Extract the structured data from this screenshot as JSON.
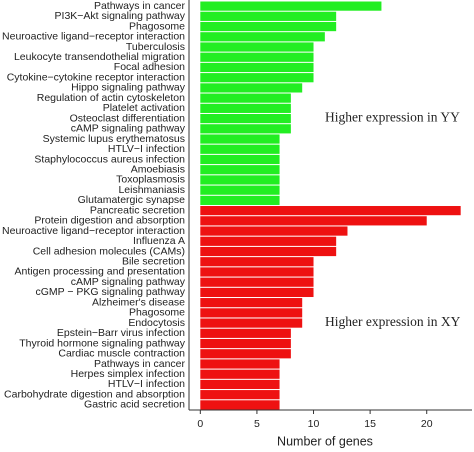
{
  "chart_data": {
    "type": "bar",
    "orientation": "horizontal",
    "xlabel": "Number of genes",
    "xlim": [
      -1,
      24
    ],
    "xticks": [
      0,
      5,
      10,
      15,
      20
    ],
    "series": [
      {
        "name": "Higher expression in YY",
        "color": "#22ee22",
        "categories": [
          "Pathways in cancer",
          "PI3K−Akt signaling pathway",
          "Phagosome",
          "Neuroactive ligand−receptor interaction",
          "Tuberculosis",
          "Leukocyte transendothelial migration",
          "Focal adhesion",
          "Cytokine−cytokine receptor interaction",
          "Hippo signaling pathway",
          "Regulation of actin cytoskeleton",
          "Platelet activation",
          "Osteoclast differentiation",
          "cAMP signaling pathway",
          "Systemic lupus erythematosus",
          "HTLV−I infection",
          "Staphylococcus aureus infection",
          "Amoebiasis",
          "Toxoplasmosis",
          "Leishmaniasis",
          "Glutamatergic synapse"
        ],
        "values": [
          16,
          12,
          12,
          11,
          10,
          10,
          10,
          10,
          9,
          8,
          8,
          8,
          8,
          7,
          7,
          7,
          7,
          7,
          7,
          7
        ]
      },
      {
        "name": "Higher expression in XY",
        "color": "#ee1111",
        "categories": [
          "Pancreatic secretion",
          "Protein digestion and absorption",
          "Neuroactive ligand−receptor interaction",
          "Influenza A",
          "Cell adhesion molecules (CAMs)",
          "Bile secretion",
          "Antigen processing and presentation",
          "cAMP signaling pathway",
          "cGMP − PKG signaling pathway",
          "Alzheimer's disease",
          "Phagosome",
          "Endocytosis",
          "Epstein−Barr virus infection",
          "Thyroid hormone signaling pathway",
          "Cardiac muscle contraction",
          "Pathways in cancer",
          "Herpes simplex infection",
          "HTLV−I infection",
          "Carbohydrate digestion and absorption",
          "Gastric acid secretion"
        ],
        "values": [
          23,
          20,
          13,
          12,
          12,
          10,
          10,
          10,
          10,
          9,
          9,
          9,
          8,
          8,
          8,
          7,
          7,
          7,
          7,
          7
        ]
      }
    ]
  }
}
